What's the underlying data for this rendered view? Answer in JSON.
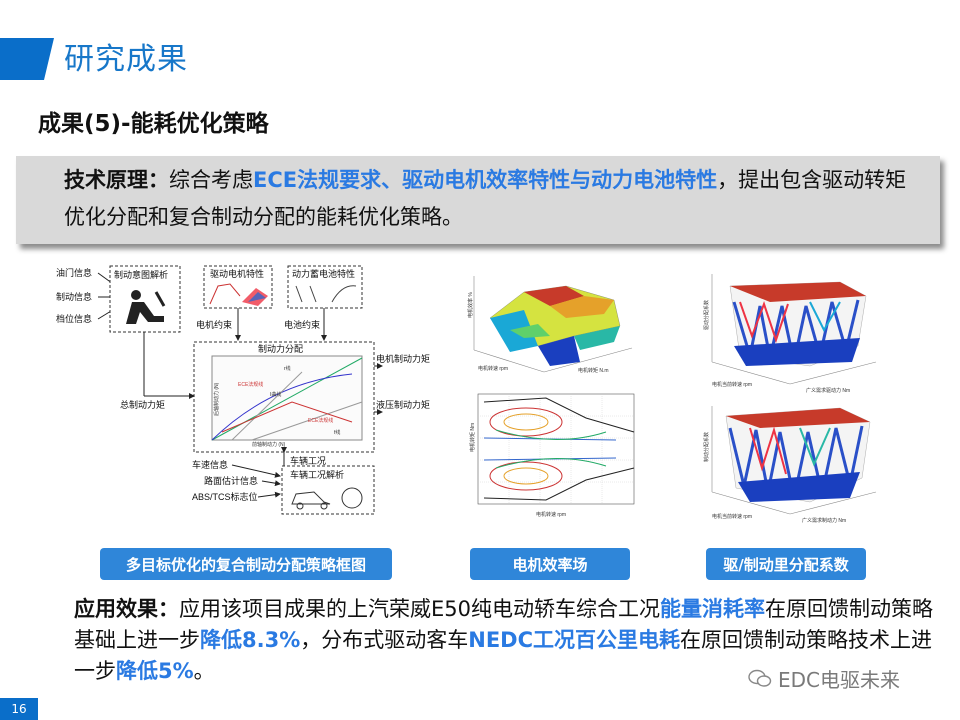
{
  "header": {
    "title": "研究成果"
  },
  "subtitle": "成果(5)-能耗优化策略",
  "principle": {
    "label": "技术原理：",
    "text_before": "综合考虑",
    "highlight": "ECE法规要求、驱动电机效率特性与动力电池特性",
    "text_after": "，提出包含驱动转矩优化分配和复合制动分配的能耗优化策略。"
  },
  "diagram": {
    "inputs": [
      "油门信息",
      "制动信息",
      "档位信息"
    ],
    "intent_box": "制动意图解析",
    "motor_char": "驱动电机特性",
    "battery_char": "动力蓄电池特性",
    "motor_limit": "电机约束",
    "battery_limit": "电池约束",
    "brake_split": "制动力分配",
    "motor_force": "电机制动力矩",
    "hydraulic_force": "液压制动力矩",
    "total_force": "总制动力矩",
    "speed_info": "车速信息",
    "road_info": "路面估计信息",
    "abs_info": "ABS/TCS标志位",
    "vehicle_state": "车辆工况",
    "vehicle_parse": "车辆工况解析",
    "ece_1": "ECE法规线",
    "ece_2": "ECE法规线",
    "i_curve": "I曲线",
    "r_line": "r线",
    "f_line": "f线",
    "front_axis": "前轴制动力 (N)",
    "rear_axis": "后轴制动力 (N)"
  },
  "efficiency_map": {
    "z_label": "电机效率 %",
    "x_label": "电机转速 rpm",
    "y_label": "电机转矩 N.m",
    "contour_y": "电机转矩 Nm",
    "contour_x": "电机转速 rpm"
  },
  "coefficient_map": {
    "z_label_top": "驱动分配系数",
    "z_label_bottom": "制动分配系数",
    "x_label": "电机当前转速 rpm",
    "y_label_top": "广义需求驱动力 Nm",
    "y_label_bottom": "广义需求制动力 Nm"
  },
  "figure_labels": [
    "多目标优化的复合制动分配策略框图",
    "电机效率场",
    "驱/制动里分配系数"
  ],
  "effect": {
    "label": "应用效果：",
    "t1": "应用该项目成果的上汽荣威E50纯电动轿车综合工况",
    "h1": "能量消耗率",
    "t2": "在原回馈制动策略基础上进一步",
    "h2": "降低8.3%",
    "t3": "，分布式驱动客车",
    "h3": "NEDC工况百公里电耗",
    "t4": "在原回馈制动策略技术上进一步",
    "h4": "降低5%",
    "t5": "。"
  },
  "watermark": "EDC电驱未来",
  "page_number": "16",
  "colors": {
    "brand_blue": "#0a6ec9",
    "highlight_blue": "#2a7ae2",
    "label_blue": "#2f86d9"
  }
}
